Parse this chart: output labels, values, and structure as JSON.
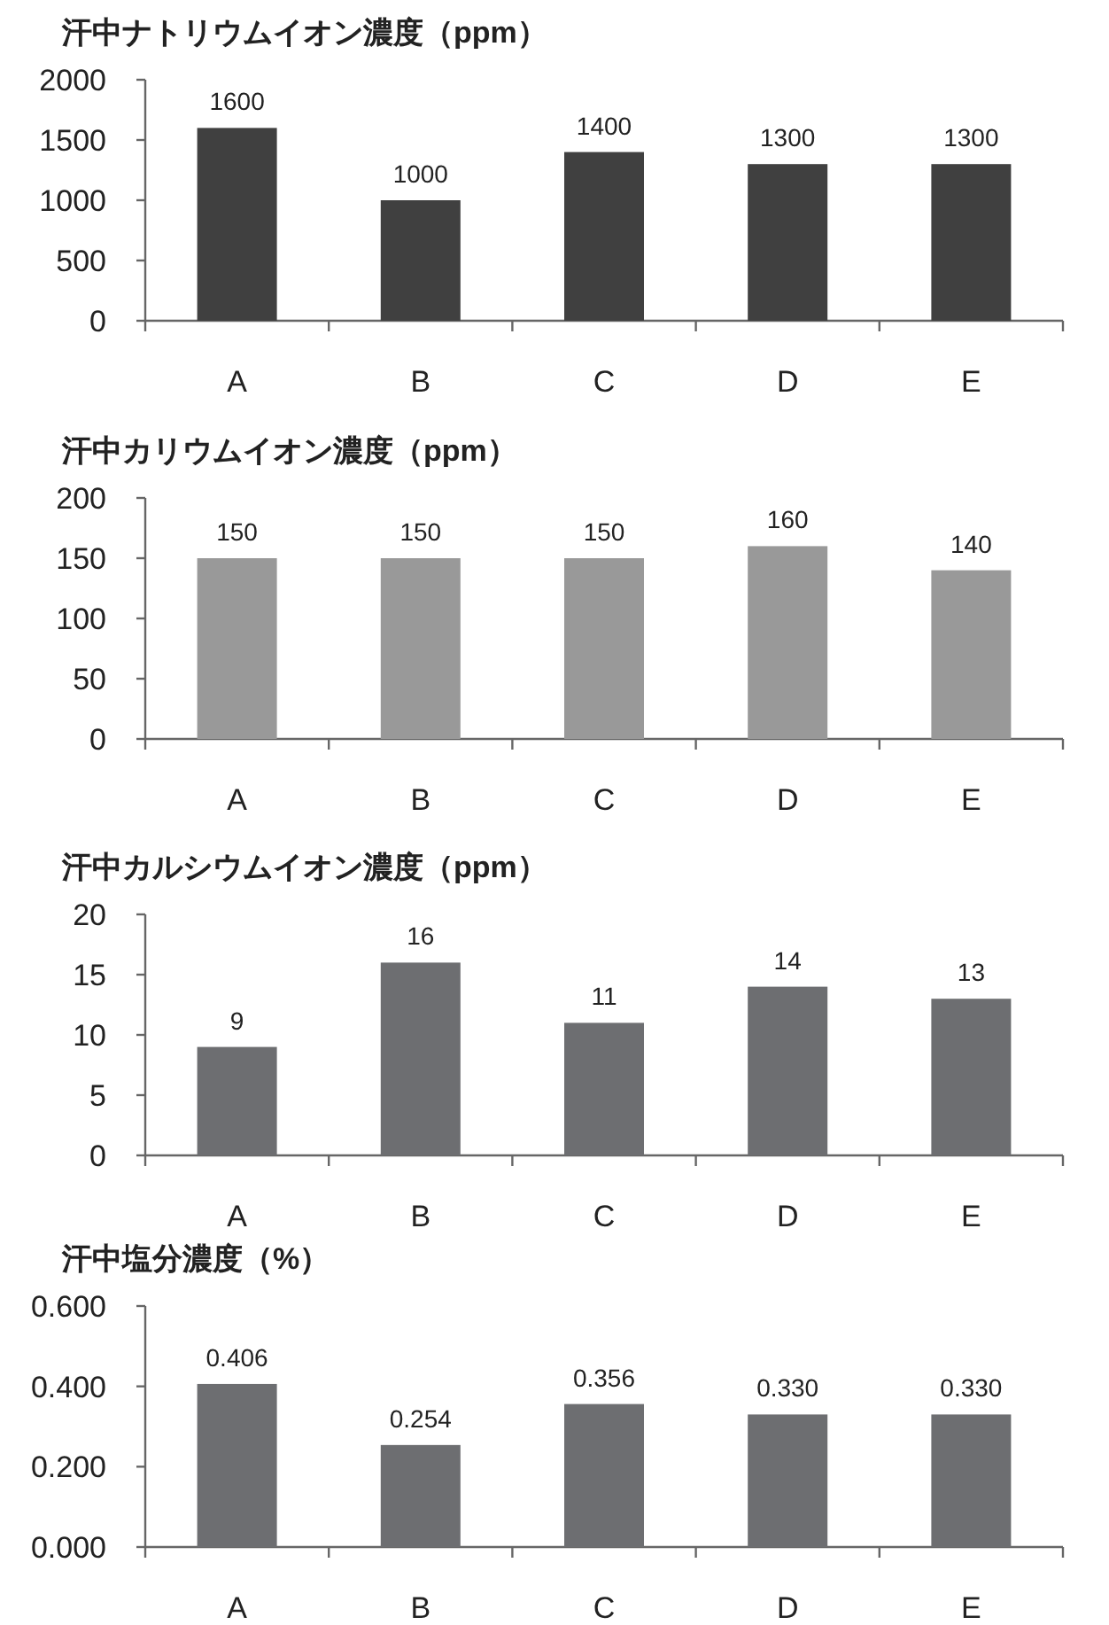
{
  "chart_data": [
    {
      "type": "bar",
      "title": "汗中ナトリウムイオン濃度（ppm）",
      "categories": [
        "A",
        "B",
        "C",
        "D",
        "E"
      ],
      "values": [
        1600,
        1000,
        1400,
        1300,
        1300
      ],
      "color": "#404040",
      "ylim": [
        0,
        2000
      ],
      "yticks": [
        0,
        500,
        1000,
        1500,
        2000
      ],
      "data_labels": true
    },
    {
      "type": "bar",
      "title": "汗中カリウムイオン濃度（ppm）",
      "categories": [
        "A",
        "B",
        "C",
        "D",
        "E"
      ],
      "values": [
        150,
        150,
        150,
        160,
        140
      ],
      "color": "#999999",
      "ylim": [
        0,
        200
      ],
      "yticks": [
        0,
        50,
        100,
        150,
        200
      ],
      "data_labels": true
    },
    {
      "type": "bar",
      "title": "汗中カルシウムイオン濃度（ppm）",
      "categories": [
        "A",
        "B",
        "C",
        "D",
        "E"
      ],
      "values": [
        9,
        16,
        11,
        14,
        13
      ],
      "color": "#6d6e71",
      "ylim": [
        0,
        20
      ],
      "yticks": [
        0,
        5,
        10,
        15,
        20
      ],
      "data_labels": true
    },
    {
      "type": "bar",
      "title": "汗中塩分濃度（%）",
      "categories": [
        "A",
        "B",
        "C",
        "D",
        "E"
      ],
      "values": [
        0.406,
        0.254,
        0.356,
        0.33,
        0.33
      ],
      "value_labels": [
        "0.406",
        "0.254",
        "0.356",
        "0.330",
        "0.330"
      ],
      "color": "#6d6e71",
      "ylim": [
        0,
        0.6
      ],
      "yticks": [
        {
          "value": 0,
          "label": "0.000"
        },
        {
          "value": 0.2,
          "label": "0.200"
        },
        {
          "value": 0.4,
          "label": "0.400"
        },
        {
          "value": 0.6,
          "label": "0.600"
        }
      ]
    }
  ]
}
